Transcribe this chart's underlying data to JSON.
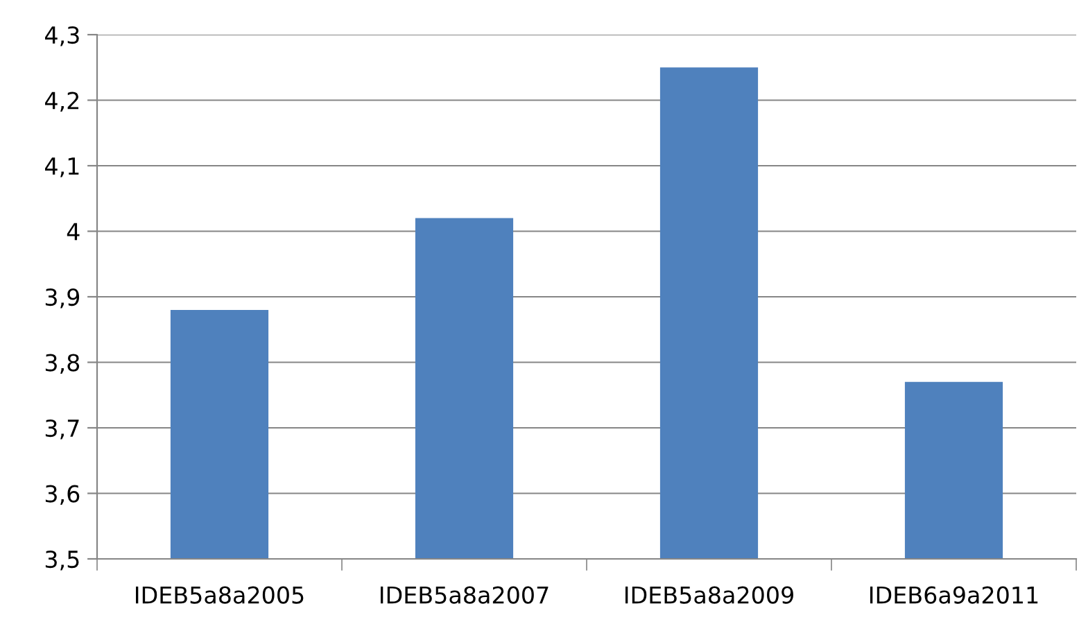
{
  "chart_data": {
    "type": "bar",
    "categories": [
      "IDEB5a8a2005",
      "IDEB5a8a2007",
      "IDEB5a8a2009",
      "IDEB6a9a2011"
    ],
    "values": [
      3.88,
      4.02,
      4.25,
      3.77
    ],
    "color": "#4f81bd",
    "ylim": [
      3.5,
      4.3
    ],
    "yticks": [
      {
        "value": 3.5,
        "label": "3,5"
      },
      {
        "value": 3.6,
        "label": "3,6"
      },
      {
        "value": 3.7,
        "label": "3,7"
      },
      {
        "value": 3.8,
        "label": "3,8"
      },
      {
        "value": 3.9,
        "label": "3,9"
      },
      4,
      {
        "value": 4.1,
        "label": "4,1"
      },
      {
        "value": 4.2,
        "label": "4,2"
      },
      {
        "value": 4.3,
        "label": "4,3"
      }
    ],
    "grid": "y",
    "legend": false
  }
}
